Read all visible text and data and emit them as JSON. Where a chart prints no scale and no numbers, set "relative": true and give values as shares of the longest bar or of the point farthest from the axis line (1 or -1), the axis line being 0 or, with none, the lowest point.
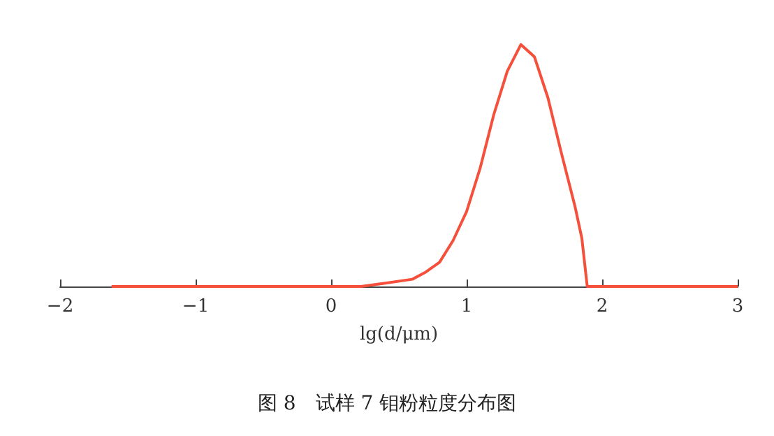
{
  "chart_data": {
    "type": "line",
    "title": "图 8　试样 7 钼粉粒度分布图",
    "xlabel": "lg(d/μm)",
    "relative": true,
    "marker": "none",
    "xlim": [
      -2,
      3
    ],
    "xticks": [
      {
        "value": -2,
        "label": "−2"
      },
      {
        "value": -1,
        "label": "−1"
      },
      0,
      1,
      2,
      3
    ],
    "series": [
      {
        "color": "#f5503c",
        "x": [
          -1.62,
          0.22,
          0.4,
          0.6,
          0.7,
          0.8,
          0.9,
          1.0,
          1.1,
          1.2,
          1.3,
          1.4,
          1.5,
          1.6,
          1.7,
          1.8,
          1.85,
          1.89,
          3
        ],
        "values": [
          0,
          0,
          0.014,
          0.03,
          0.06,
          0.1,
          0.19,
          0.31,
          0.49,
          0.71,
          0.89,
          1,
          0.95,
          0.78,
          0.55,
          0.33,
          0.2,
          0,
          0
        ]
      }
    ]
  }
}
